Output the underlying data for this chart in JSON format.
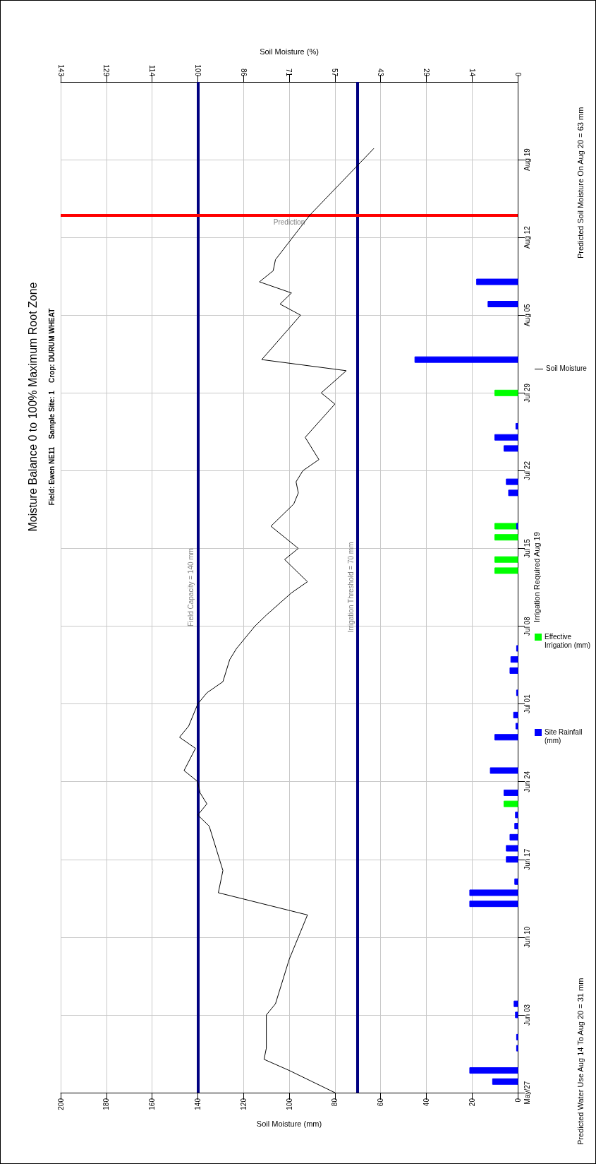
{
  "chart_data": {
    "type": "line",
    "orientation": "horizontal",
    "title": "Moisture Balance 0 to 100% Maximum Root Zone",
    "subtitle": "Field: Ewen NE11    Sample Site: 1    Crop: DURUM WHEAT",
    "xlabel": "Soil Moisture (mm)",
    "x2label": "Soil Moisture (%)",
    "ylim": [
      "--05-27",
      "--08-26"
    ],
    "yticks": [
      {
        "value": "--05-27",
        "label": "May/27"
      },
      {
        "value": "--06-03",
        "label": "Jun 03"
      },
      {
        "value": "--06-10",
        "label": "Jun 10"
      },
      {
        "value": "--06-17",
        "label": "Jun 17"
      },
      {
        "value": "--06-24",
        "label": "Jun 24"
      },
      {
        "value": "--07-01",
        "label": "Jul 01"
      },
      {
        "value": "--07-08",
        "label": "Jul 08"
      },
      {
        "value": "--07-15",
        "label": "Jul 15"
      },
      {
        "value": "--07-22",
        "label": "Jul 22"
      },
      {
        "value": "--07-29",
        "label": "Jul 29"
      },
      {
        "value": "--08-05",
        "label": "Aug 05"
      },
      {
        "value": "--08-12",
        "label": "Aug 12"
      },
      {
        "value": "--08-19",
        "label": "Aug 19"
      }
    ],
    "xlim": [
      200,
      0
    ],
    "xticks": [
      0,
      20,
      40,
      60,
      80,
      100,
      120,
      140,
      160,
      180,
      200
    ],
    "x2lim": [
      142.857,
      0
    ],
    "x2ticks": [
      0,
      {
        "value": 14.286,
        "label": "14"
      },
      {
        "value": 28.571,
        "label": "29"
      },
      {
        "value": 42.857,
        "label": "43"
      },
      {
        "value": 57.143,
        "label": "57"
      },
      {
        "value": 71.429,
        "label": "71"
      },
      {
        "value": 85.714,
        "label": "86"
      },
      100,
      {
        "value": 114.286,
        "label": "114"
      },
      {
        "value": 128.571,
        "label": "129"
      },
      {
        "value": 142.857,
        "label": "143"
      }
    ],
    "series": [
      {
        "name": "Site Rainfall (mm)",
        "type": "bar",
        "color": "#0000ff",
        "x": [
          "--05-28",
          "--05-29",
          "--05-31",
          "--06-01",
          "--06-03",
          "--06-04",
          "--06-13",
          "--06-14",
          "--06-15",
          "--06-17",
          "--06-18",
          "--06-19",
          "--06-20",
          "--06-21",
          "--06-23",
          "--06-25",
          "--06-28",
          "--06-29",
          "--06-30",
          "--07-02",
          "--07-04",
          "--07-05",
          "--07-06",
          "--07-17",
          "--07-20",
          "--07-21",
          "--07-24",
          "--07-25",
          "--07-26",
          "--08-01",
          "--08-06",
          "--08-08"
        ],
        "values": [
          11,
          21,
          0.5,
          0.5,
          1,
          1.6,
          21,
          21,
          1.3,
          5,
          5,
          3.4,
          1.3,
          1,
          6,
          12,
          10,
          0.8,
          1.8,
          0.5,
          3.4,
          3,
          0.5,
          0.5,
          4,
          5,
          6,
          10,
          0.8,
          45,
          13,
          18
        ]
      },
      {
        "name": "Effective Irrigation (mm)",
        "type": "bar",
        "color": "#00ff00",
        "x": [
          "--06-22",
          "--07-13",
          "--07-14",
          "--07-16",
          "--07-17",
          "--07-29"
        ],
        "values": [
          6,
          10,
          10,
          10,
          10,
          10
        ]
      },
      {
        "name": "Soil Moisture",
        "color": "#000000",
        "x": [
          "--05-27",
          "--05-28",
          "--05-29",
          "--05-30",
          "--05-31",
          "--06-03",
          "--06-04",
          "--06-08",
          "--06-12",
          "--06-14",
          "--06-16",
          "--06-18",
          "--06-20",
          "--06-21",
          "--06-22",
          "--06-23",
          "--06-24",
          "--06-25",
          "--06-27",
          "--06-28",
          "--06-29",
          "--07-01",
          "--07-02",
          "--07-03",
          "--07-05",
          "--07-06",
          "--07-08",
          "--07-09",
          "--07-11",
          "--07-12",
          "--07-14",
          "--07-15",
          "--07-17",
          "--07-19",
          "--07-20",
          "--07-21",
          "--07-22",
          "--07-23",
          "--07-25",
          "--07-28",
          "--07-29",
          "--07-31",
          "--08-01",
          "--08-05",
          "--08-06",
          "--08-07",
          "--08-08",
          "--08-09",
          "--08-10",
          "--08-14",
          "--08-20"
        ],
        "values": [
          80,
          90,
          100,
          111,
          110,
          110,
          106,
          100,
          92,
          131,
          129,
          132,
          135,
          140,
          136,
          139,
          140,
          146,
          141,
          148,
          144,
          140,
          136,
          129,
          126,
          123,
          115,
          110,
          99,
          92,
          102,
          96,
          108,
          98,
          96,
          97,
          94,
          87,
          93,
          80,
          86,
          75,
          112,
          95,
          104,
          99,
          113,
          107,
          106,
          91,
          63
        ]
      }
    ],
    "ref_lines": [
      {
        "axis": "x",
        "value": 140,
        "label": "Field Capacity = 140 mm",
        "color": "#000080"
      },
      {
        "axis": "x",
        "value": 70,
        "label": "Irrigation Threshold = 70 mm",
        "color": "#000080"
      },
      {
        "axis": "y",
        "value": "--08-14",
        "label": "Prediction",
        "color": "#ff0000"
      }
    ],
    "annotations": [
      "Irrigation Required Aug 19",
      "Predicted Water Use Aug 14 To Aug 20 = 31 mm",
      "Predicted Soil Moisture On Aug 20 = 63 mm"
    ],
    "grid": true,
    "legend": "right",
    "marker": "none",
    "line_style": "solid"
  }
}
